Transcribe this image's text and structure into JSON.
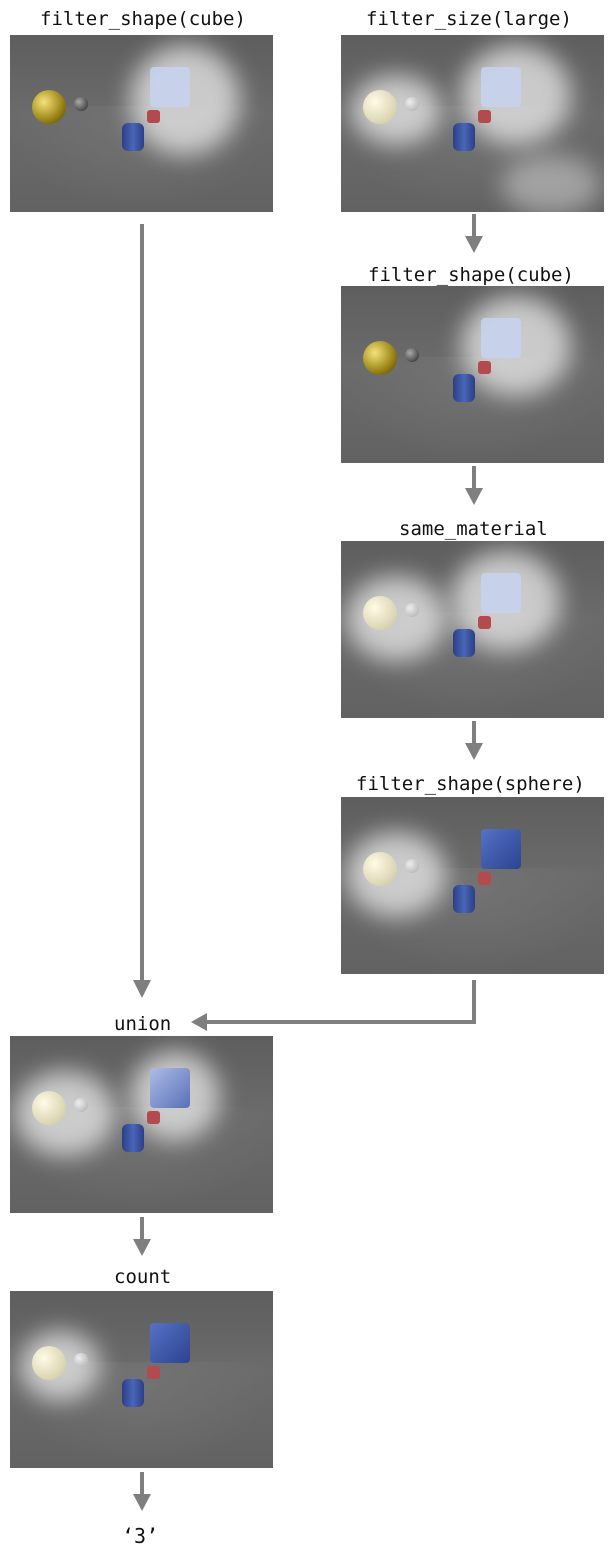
{
  "labels": {
    "l1": "filter_shape(cube)",
    "r1": "filter_size(large)",
    "r2": "filter_shape(cube)",
    "r3": "same_material",
    "r4": "filter_shape(sphere)",
    "union": "union",
    "count": "count",
    "answer": "‘3’"
  },
  "colors": {
    "arrow": "#7f7f7f",
    "background": "#ffffff",
    "blue": "#3f58a8",
    "red": "#b24a4e",
    "gold": "#b8a020"
  },
  "icons": {
    "arrow_down": "arrow-down-icon",
    "arrow_left": "arrow-left-icon"
  }
}
